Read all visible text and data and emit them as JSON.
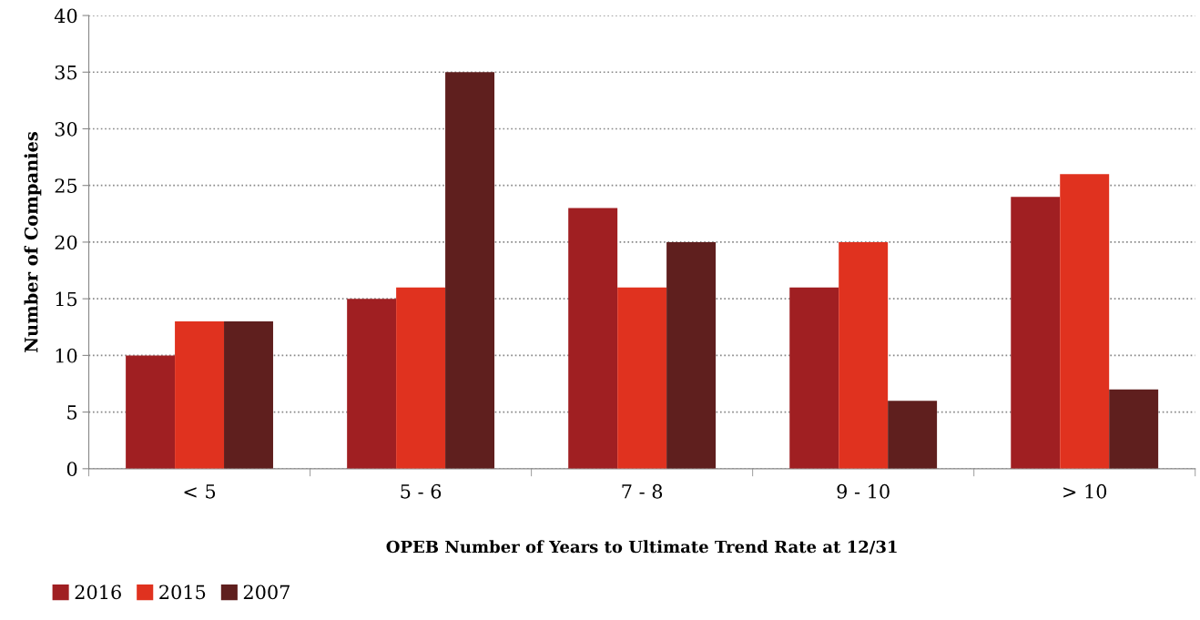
{
  "chart_data": {
    "type": "bar",
    "xlabel": "OPEB Number of Years to Ultimate Trend Rate at 12/31",
    "ylabel": "Number of Companies",
    "categories": [
      "< 5",
      "5 - 6",
      "7 - 8",
      "9 - 10",
      "> 10"
    ],
    "series": [
      {
        "name": "2016",
        "color": "#a01f22",
        "values": [
          10,
          15,
          23,
          16,
          24
        ]
      },
      {
        "name": "2015",
        "color": "#e0321f",
        "values": [
          13,
          16,
          16,
          20,
          26
        ]
      },
      {
        "name": "2007",
        "color": "#5f1f1e",
        "values": [
          13,
          35,
          20,
          6,
          7
        ]
      }
    ],
    "ylim": [
      0,
      40
    ],
    "yticks": [
      0,
      5,
      10,
      15,
      20,
      25,
      30,
      35,
      40
    ],
    "grid": "y",
    "legend": "bottom left"
  }
}
